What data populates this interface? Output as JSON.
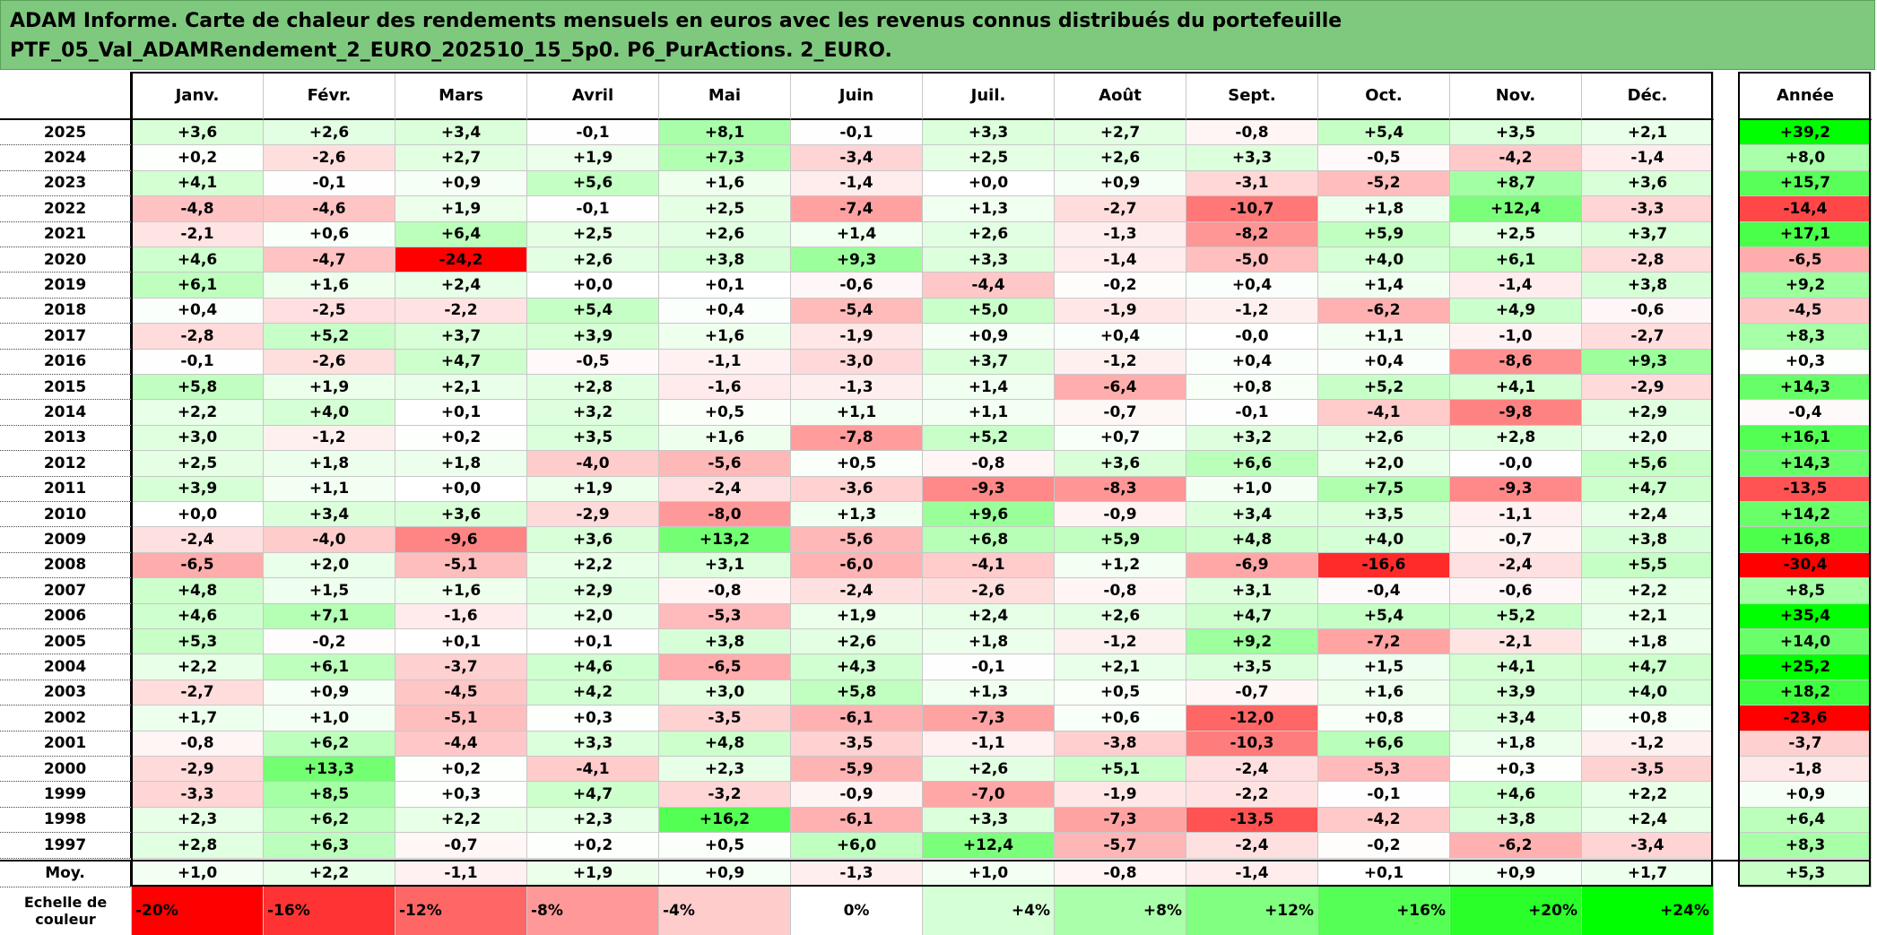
{
  "title_line1": "ADAM Informe. Carte de chaleur des rendements mensuels en euros avec les revenus connus distribués du portefeuille",
  "title_line2": "PTF_05_Val_ADAMRendement_2_EURO_202510_15_5p0. P6_PurActions. 2_EURO.",
  "colors": {
    "negative_max": "#ff0000",
    "neutral": "#ffffff",
    "positive_max": "#00ff00",
    "title_bg": "#7fc97f"
  },
  "chart_data": {
    "type": "heatmap",
    "columns": [
      "Janv.",
      "Févr.",
      "Mars",
      "Avril",
      "Mai",
      "Juin",
      "Juil.",
      "Août",
      "Sept.",
      "Oct.",
      "Nov.",
      "Déc."
    ],
    "annual_label": "Année",
    "rows": [
      {
        "year": "2025",
        "values": [
          "+3,6",
          "+2,6",
          "+3,4",
          "-0,1",
          "+8,1",
          "-0,1",
          "+3,3",
          "+2,7",
          "-0,8",
          "+5,4",
          "+3,5",
          "+2,1"
        ],
        "annual": "+39,2"
      },
      {
        "year": "2024",
        "values": [
          "+0,2",
          "-2,6",
          "+2,7",
          "+1,9",
          "+7,3",
          "-3,4",
          "+2,5",
          "+2,6",
          "+3,3",
          "-0,5",
          "-4,2",
          "-1,4"
        ],
        "annual": "+8,0"
      },
      {
        "year": "2023",
        "values": [
          "+4,1",
          "-0,1",
          "+0,9",
          "+5,6",
          "+1,6",
          "-1,4",
          "+0,0",
          "+0,9",
          "-3,1",
          "-5,2",
          "+8,7",
          "+3,6"
        ],
        "annual": "+15,7"
      },
      {
        "year": "2022",
        "values": [
          "-4,8",
          "-4,6",
          "+1,9",
          "-0,1",
          "+2,5",
          "-7,4",
          "+1,3",
          "-2,7",
          "-10,7",
          "+1,8",
          "+12,4",
          "-3,3"
        ],
        "annual": "-14,4"
      },
      {
        "year": "2021",
        "values": [
          "-2,1",
          "+0,6",
          "+6,4",
          "+2,5",
          "+2,6",
          "+1,4",
          "+2,6",
          "-1,3",
          "-8,2",
          "+5,9",
          "+2,5",
          "+3,7"
        ],
        "annual": "+17,1"
      },
      {
        "year": "2020",
        "values": [
          "+4,6",
          "-4,7",
          "-24,2",
          "+2,6",
          "+3,8",
          "+9,3",
          "+3,3",
          "-1,4",
          "-5,0",
          "+4,0",
          "+6,1",
          "-2,8"
        ],
        "annual": "-6,5"
      },
      {
        "year": "2019",
        "values": [
          "+6,1",
          "+1,6",
          "+2,4",
          "+0,0",
          "+0,1",
          "-0,6",
          "-4,4",
          "-0,2",
          "+0,4",
          "+1,4",
          "-1,4",
          "+3,8"
        ],
        "annual": "+9,2"
      },
      {
        "year": "2018",
        "values": [
          "+0,4",
          "-2,5",
          "-2,2",
          "+5,4",
          "+0,4",
          "-5,4",
          "+5,0",
          "-1,9",
          "-1,2",
          "-6,2",
          "+4,9",
          "-0,6"
        ],
        "annual": "-4,5"
      },
      {
        "year": "2017",
        "values": [
          "-2,8",
          "+5,2",
          "+3,7",
          "+3,9",
          "+1,6",
          "-1,9",
          "+0,9",
          "+0,4",
          "-0,0",
          "+1,1",
          "-1,0",
          "-2,7"
        ],
        "annual": "+8,3"
      },
      {
        "year": "2016",
        "values": [
          "-0,1",
          "-2,6",
          "+4,7",
          "-0,5",
          "-1,1",
          "-3,0",
          "+3,7",
          "-1,2",
          "+0,4",
          "+0,4",
          "-8,6",
          "+9,3"
        ],
        "annual": "+0,3"
      },
      {
        "year": "2015",
        "values": [
          "+5,8",
          "+1,9",
          "+2,1",
          "+2,8",
          "-1,6",
          "-1,3",
          "+1,4",
          "-6,4",
          "+0,8",
          "+5,2",
          "+4,1",
          "-2,9"
        ],
        "annual": "+14,3"
      },
      {
        "year": "2014",
        "values": [
          "+2,2",
          "+4,0",
          "+0,1",
          "+3,2",
          "+0,5",
          "+1,1",
          "+1,1",
          "-0,7",
          "-0,1",
          "-4,1",
          "-9,8",
          "+2,9"
        ],
        "annual": "-0,4"
      },
      {
        "year": "2013",
        "values": [
          "+3,0",
          "-1,2",
          "+0,2",
          "+3,5",
          "+1,6",
          "-7,8",
          "+5,2",
          "+0,7",
          "+3,2",
          "+2,6",
          "+2,8",
          "+2,0"
        ],
        "annual": "+16,1"
      },
      {
        "year": "2012",
        "values": [
          "+2,5",
          "+1,8",
          "+1,8",
          "-4,0",
          "-5,6",
          "+0,5",
          "-0,8",
          "+3,6",
          "+6,6",
          "+2,0",
          "-0,0",
          "+5,6"
        ],
        "annual": "+14,3"
      },
      {
        "year": "2011",
        "values": [
          "+3,9",
          "+1,1",
          "+0,0",
          "+1,9",
          "-2,4",
          "-3,6",
          "-9,3",
          "-8,3",
          "+1,0",
          "+7,5",
          "-9,3",
          "+4,7"
        ],
        "annual": "-13,5"
      },
      {
        "year": "2010",
        "values": [
          "+0,0",
          "+3,4",
          "+3,6",
          "-2,9",
          "-8,0",
          "+1,3",
          "+9,6",
          "-0,9",
          "+3,4",
          "+3,5",
          "-1,1",
          "+2,4"
        ],
        "annual": "+14,2"
      },
      {
        "year": "2009",
        "values": [
          "-2,4",
          "-4,0",
          "-9,6",
          "+3,6",
          "+13,2",
          "-5,6",
          "+6,8",
          "+5,9",
          "+4,8",
          "+4,0",
          "-0,7",
          "+3,8"
        ],
        "annual": "+16,8"
      },
      {
        "year": "2008",
        "values": [
          "-6,5",
          "+2,0",
          "-5,1",
          "+2,2",
          "+3,1",
          "-6,0",
          "-4,1",
          "+1,2",
          "-6,9",
          "-16,6",
          "-2,4",
          "+5,5"
        ],
        "annual": "-30,4"
      },
      {
        "year": "2007",
        "values": [
          "+4,8",
          "+1,5",
          "+1,6",
          "+2,9",
          "-0,8",
          "-2,4",
          "-2,6",
          "-0,8",
          "+3,1",
          "-0,4",
          "-0,6",
          "+2,2"
        ],
        "annual": "+8,5"
      },
      {
        "year": "2006",
        "values": [
          "+4,6",
          "+7,1",
          "-1,6",
          "+2,0",
          "-5,3",
          "+1,9",
          "+2,4",
          "+2,6",
          "+4,7",
          "+5,4",
          "+5,2",
          "+2,1"
        ],
        "annual": "+35,4"
      },
      {
        "year": "2005",
        "values": [
          "+5,3",
          "-0,2",
          "+0,1",
          "+0,1",
          "+3,8",
          "+2,6",
          "+1,8",
          "-1,2",
          "+9,2",
          "-7,2",
          "-2,1",
          "+1,8"
        ],
        "annual": "+14,0"
      },
      {
        "year": "2004",
        "values": [
          "+2,2",
          "+6,1",
          "-3,7",
          "+4,6",
          "-6,5",
          "+4,3",
          "-0,1",
          "+2,1",
          "+3,5",
          "+1,5",
          "+4,1",
          "+4,7"
        ],
        "annual": "+25,2"
      },
      {
        "year": "2003",
        "values": [
          "-2,7",
          "+0,9",
          "-4,5",
          "+4,2",
          "+3,0",
          "+5,8",
          "+1,3",
          "+0,5",
          "-0,7",
          "+1,6",
          "+3,9",
          "+4,0"
        ],
        "annual": "+18,2"
      },
      {
        "year": "2002",
        "values": [
          "+1,7",
          "+1,0",
          "-5,1",
          "+0,3",
          "-3,5",
          "-6,1",
          "-7,3",
          "+0,6",
          "-12,0",
          "+0,8",
          "+3,4",
          "+0,8"
        ],
        "annual": "-23,6"
      },
      {
        "year": "2001",
        "values": [
          "-0,8",
          "+6,2",
          "-4,4",
          "+3,3",
          "+4,8",
          "-3,5",
          "-1,1",
          "-3,8",
          "-10,3",
          "+6,6",
          "+1,8",
          "-1,2"
        ],
        "annual": "-3,7"
      },
      {
        "year": "2000",
        "values": [
          "-2,9",
          "+13,3",
          "+0,2",
          "-4,1",
          "+2,3",
          "-5,9",
          "+2,6",
          "+5,1",
          "-2,4",
          "-5,3",
          "+0,3",
          "-3,5"
        ],
        "annual": "-1,8"
      },
      {
        "year": "1999",
        "values": [
          "-3,3",
          "+8,5",
          "+0,3",
          "+4,7",
          "-3,2",
          "-0,9",
          "-7,0",
          "-1,9",
          "-2,2",
          "-0,1",
          "+4,6",
          "+2,2"
        ],
        "annual": "+0,9"
      },
      {
        "year": "1998",
        "values": [
          "+2,3",
          "+6,2",
          "+2,2",
          "+2,3",
          "+16,2",
          "-6,1",
          "+3,3",
          "-7,3",
          "-13,5",
          "-4,2",
          "+3,8",
          "+2,4"
        ],
        "annual": "+6,4"
      },
      {
        "year": "1997",
        "values": [
          "+2,8",
          "+6,3",
          "-0,7",
          "+0,2",
          "+0,5",
          "+6,0",
          "+12,4",
          "-5,7",
          "-2,4",
          "-0,2",
          "-6,2",
          "-3,4"
        ],
        "annual": "+8,3"
      }
    ],
    "average": {
      "label": "Moy.",
      "values": [
        "+1,0",
        "+2,2",
        "-1,1",
        "+1,9",
        "+0,9",
        "-1,3",
        "+1,0",
        "-0,8",
        "-1,4",
        "+0,1",
        "+0,9",
        "+1,7"
      ],
      "annual": "+5,3"
    },
    "color_scale": {
      "label": "Echelle de couleur",
      "stops": [
        "-20%",
        "-16%",
        "-12%",
        "-8%",
        "-4%",
        "0%",
        "+4%",
        "+8%",
        "+12%",
        "+16%",
        "+20%",
        "+24%"
      ],
      "range": [
        -20,
        24
      ]
    }
  }
}
